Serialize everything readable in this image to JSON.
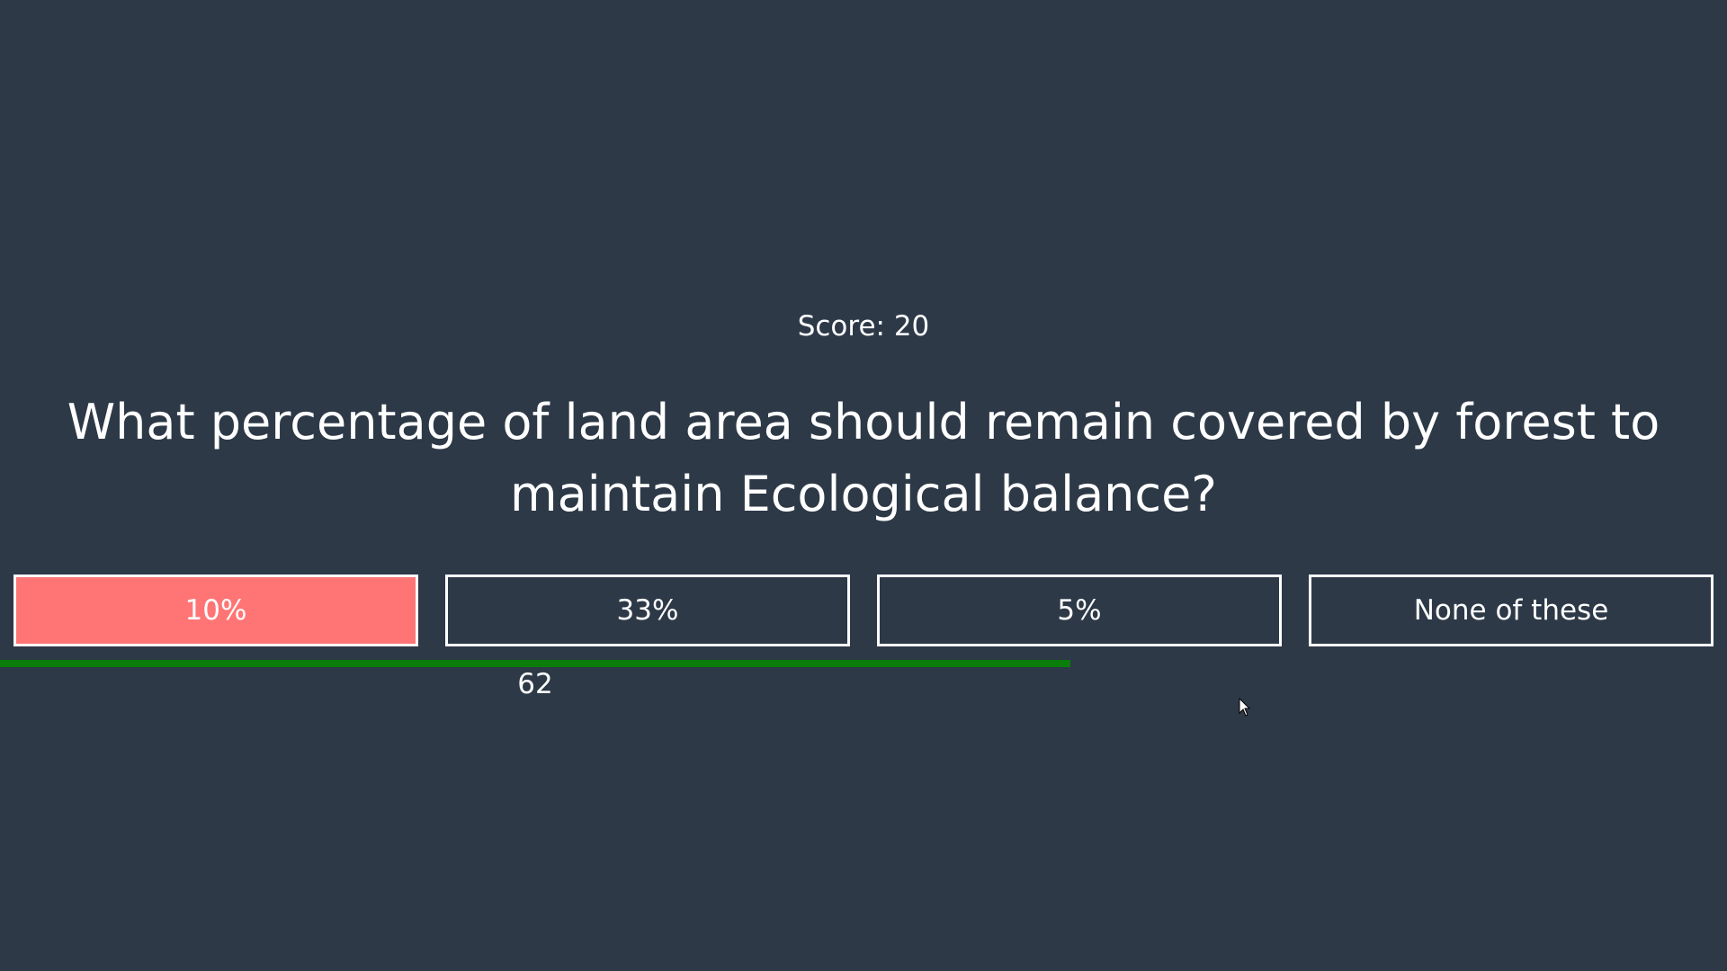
{
  "score": {
    "text": "Score: 20"
  },
  "question": {
    "text": "What percentage of land area should remain covered by forest to maintain Ecological balance?"
  },
  "answers": [
    {
      "label": "10%",
      "state": "wrong"
    },
    {
      "label": "33%",
      "state": "default"
    },
    {
      "label": "5%",
      "state": "default"
    },
    {
      "label": "None of these",
      "state": "default"
    }
  ],
  "timer": {
    "value": "62",
    "fraction_remaining": 0.62,
    "bar_color": "#0a7d0a"
  },
  "colors": {
    "background": "#2d3947",
    "text": "#ffffff",
    "wrong_answer": "#ff7575",
    "answer_border": "#ffffff"
  },
  "icons": {
    "cursor": "mouse-pointer-icon"
  }
}
